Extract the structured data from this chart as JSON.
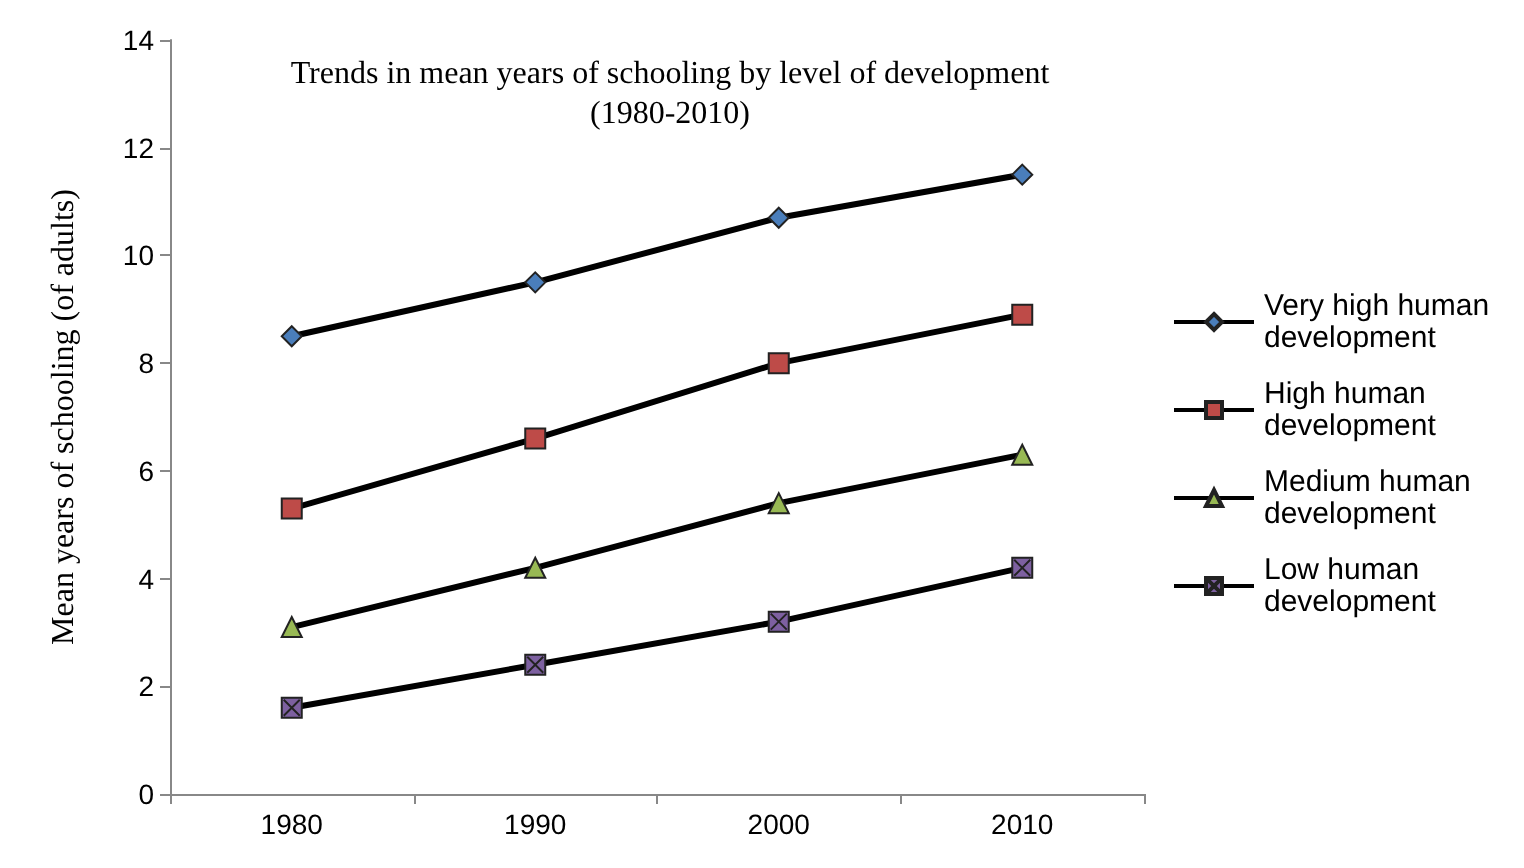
{
  "chart_data": {
    "type": "line",
    "title": "Trends in mean years of schooling by level of development\n(1980-2010)",
    "ylabel": "Mean years of schooling (of adults)",
    "categories": [
      "1980",
      "1990",
      "2000",
      "2010"
    ],
    "series": [
      {
        "name": "Very high human development",
        "color": "#4a7ebb",
        "marker": "diamond",
        "values": [
          8.5,
          9.5,
          10.7,
          11.5
        ]
      },
      {
        "name": "High human development",
        "color": "#be4b48",
        "marker": "square",
        "values": [
          5.3,
          6.6,
          8.0,
          8.9
        ]
      },
      {
        "name": "Medium human development",
        "color": "#98b954",
        "marker": "triangle",
        "values": [
          3.1,
          4.2,
          5.4,
          6.3
        ]
      },
      {
        "name": "Low human development",
        "color": "#7d60a0",
        "marker": "cross",
        "values": [
          1.6,
          2.4,
          3.2,
          4.2
        ]
      }
    ],
    "ylim": [
      0,
      14
    ],
    "yticks": [
      0,
      2,
      4,
      6,
      8,
      10,
      12,
      14
    ],
    "grid": false,
    "legend": "right"
  }
}
